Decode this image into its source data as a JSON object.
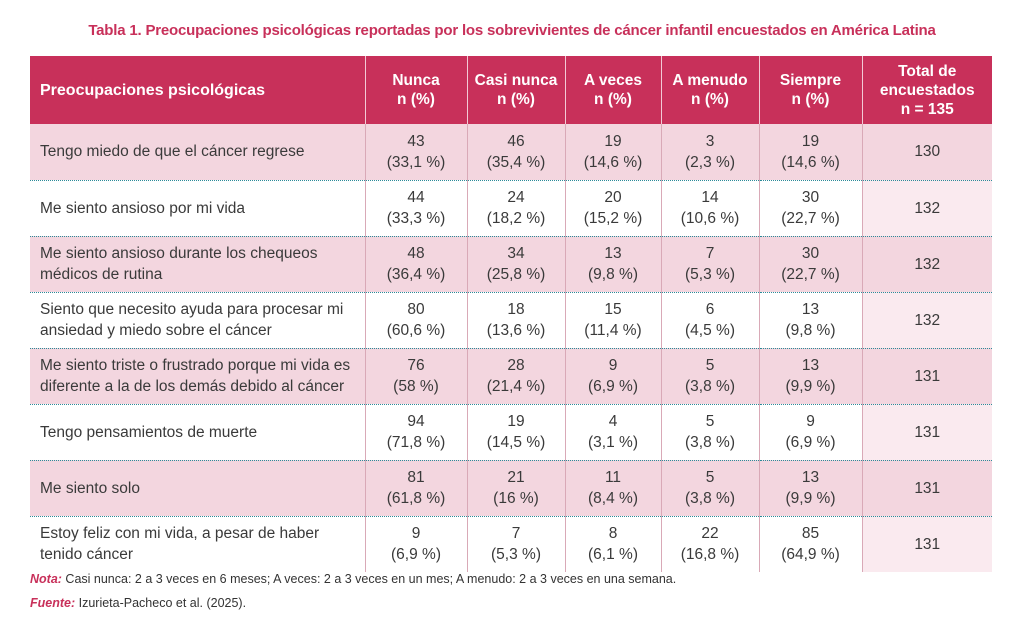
{
  "caption": {
    "label": "Tabla 1.",
    "title": "Preocupaciones psicológicas reportadas por los sobrevivientes de cáncer infantil encuestados en América Latina"
  },
  "table": {
    "headers": [
      "Preocupaciones psicológicas",
      "Nunca\nn (%)",
      "Casi nunca\nn (%)",
      "A veces\nn (%)",
      "A menudo\nn (%)",
      "Siempre\nn (%)",
      "Total de\nencuestados\nn = 135"
    ],
    "rows": [
      {
        "item": "Tengo miedo de que el cáncer regrese",
        "nunca": [
          "43",
          "(33,1 %)"
        ],
        "casi_nunca": [
          "46",
          "(35,4 %)"
        ],
        "a_veces": [
          "19",
          "(14,6 %)"
        ],
        "a_menudo": [
          "3",
          "(2,3 %)"
        ],
        "siempre": [
          "19",
          "(14,6 %)"
        ],
        "total": "130"
      },
      {
        "item": "Me siento ansioso por mi vida",
        "nunca": [
          "44",
          "(33,3 %)"
        ],
        "casi_nunca": [
          "24",
          "(18,2 %)"
        ],
        "a_veces": [
          "20",
          "(15,2 %)"
        ],
        "a_menudo": [
          "14",
          "(10,6 %)"
        ],
        "siempre": [
          "30",
          "(22,7 %)"
        ],
        "total": "132"
      },
      {
        "item": "Me siento ansioso durante los chequeos médicos de rutina",
        "nunca": [
          "48",
          "(36,4 %)"
        ],
        "casi_nunca": [
          "34",
          "(25,8 %)"
        ],
        "a_veces": [
          "13",
          "(9,8 %)"
        ],
        "a_menudo": [
          "7",
          "(5,3 %)"
        ],
        "siempre": [
          "30",
          "(22,7 %)"
        ],
        "total": "132"
      },
      {
        "item": "Siento que necesito ayuda para procesar mi ansiedad y miedo sobre el cáncer",
        "nunca": [
          "80",
          "(60,6 %)"
        ],
        "casi_nunca": [
          "18",
          "(13,6 %)"
        ],
        "a_veces": [
          "15",
          "(11,4 %)"
        ],
        "a_menudo": [
          "6",
          "(4,5 %)"
        ],
        "siempre": [
          "13",
          "(9,8 %)"
        ],
        "total": "132"
      },
      {
        "item": "Me siento triste o frustrado porque mi vida es diferente a la de los demás debido al cáncer",
        "nunca": [
          "76",
          "(58 %)"
        ],
        "casi_nunca": [
          "28",
          "(21,4 %)"
        ],
        "a_veces": [
          "9",
          "(6,9 %)"
        ],
        "a_menudo": [
          "5",
          "(3,8 %)"
        ],
        "siempre": [
          "13",
          "(9,9 %)"
        ],
        "total": "131"
      },
      {
        "item": "Tengo pensamientos de muerte",
        "nunca": [
          "94",
          "(71,8 %)"
        ],
        "casi_nunca": [
          "19",
          "(14,5 %)"
        ],
        "a_veces": [
          "4",
          "(3,1 %)"
        ],
        "a_menudo": [
          "5",
          "(3,8 %)"
        ],
        "siempre": [
          "9",
          "(6,9 %)"
        ],
        "total": "131"
      },
      {
        "item": "Me siento solo",
        "nunca": [
          "81",
          "(61,8 %)"
        ],
        "casi_nunca": [
          "21",
          "(16 %)"
        ],
        "a_veces": [
          "11",
          "(8,4 %)"
        ],
        "a_menudo": [
          "5",
          "(3,8 %)"
        ],
        "siempre": [
          "13",
          "(9,9 %)"
        ],
        "total": "131"
      },
      {
        "item": "Estoy feliz con mi vida, a pesar de haber tenido cáncer",
        "nunca": [
          "9",
          "(6,9 %)"
        ],
        "casi_nunca": [
          "7",
          "(5,3 %)"
        ],
        "a_veces": [
          "8",
          "(6,1 %)"
        ],
        "a_menudo": [
          "22",
          "(16,8 %)"
        ],
        "siempre": [
          "85",
          "(64,9 %)"
        ],
        "total": "131"
      }
    ]
  },
  "notes": {
    "nota_label": "Nota:",
    "nota_text": " Casi nunca: 2 a 3 veces en 6 meses; A veces: 2 a 3 veces en un mes; A menudo: 2 a 3 veces en una semana.",
    "fuente_label": "Fuente:",
    "fuente_text": " Izurieta-Pacheco et al. (2025)."
  },
  "colors": {
    "accent": "#c8305a",
    "row_shade": "#f3d6df",
    "divider": "#2b8b99"
  }
}
